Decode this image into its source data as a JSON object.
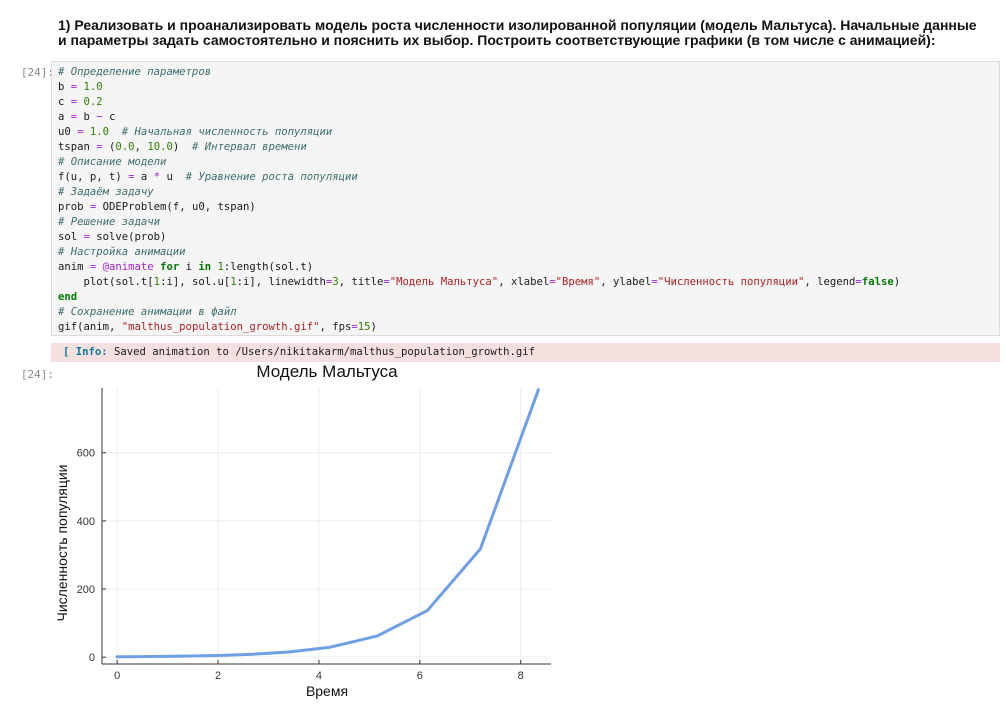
{
  "markdown": {
    "line1": "1) Реализовать и проанализировать модель роста численности изолированной популяции (модель Мальтуса). Начальные данные",
    "line2": "и параметры задать самостоятельно и пояснить их выбор. Построить соответствующие графики (в том числе с анимацией):"
  },
  "cell": {
    "in_prompt": "[24]:",
    "out_prompt": "[24]:",
    "code": {
      "l1_comment": "# Определение параметров",
      "l2_var": "b",
      "l2_eq": " = ",
      "l2_num": "1.0",
      "l3_var": "c",
      "l3_eq": " = ",
      "l3_num": "0.2",
      "l4_a": "a",
      "l4_eq": " = ",
      "l4_b": "b",
      "l4_minus": " − ",
      "l4_c": "c",
      "l5_var": "u0",
      "l5_eq": " = ",
      "l5_num": "1.0",
      "l5_comment": "  # Начальная численность популяции",
      "l6_var": "tspan",
      "l6_eq": " = ",
      "l6_open": "(",
      "l6_n1": "0.0",
      "l6_sep": ", ",
      "l6_n2": "10.0",
      "l6_close": ")",
      "l6_comment": "  # Интервал времени",
      "l7_comment": "# Описание модели",
      "l8_lhs": "f(u, p, t)",
      "l8_eq": " = ",
      "l8_a": "a",
      "l8_mul": " * ",
      "l8_u": "u",
      "l8_comment": "  # Уравнение роста популяции",
      "l9_comment": "# Задаём задачу",
      "l10_var": "prob",
      "l10_eq": " = ",
      "l10_rhs": "ODEProblem(f, u0, tspan)",
      "l11_comment": "# Решение задачи",
      "l12_var": "sol",
      "l12_eq": " = ",
      "l12_rhs": "solve(prob)",
      "l13_comment": "# Настройка анимации",
      "l14_var": "anim",
      "l14_eq": " = ",
      "l14_macro": "@animate",
      "l14_for": " for ",
      "l14_i": "i",
      "l14_in": " in ",
      "l14_one": "1",
      "l14_rest": ":length(sol.t)",
      "l15_a": "    plot(sol.t[",
      "l15_n1": "1",
      "l15_b": ":i], sol.u[",
      "l15_n2": "1",
      "l15_c": ":i], linewidth",
      "l15_eq1": "=",
      "l15_n3": "3",
      "l15_d": ", title",
      "l15_eq2": "=",
      "l15_s1": "\"Модель Мальтуса\"",
      "l15_e": ", xlabel",
      "l15_eq3": "=",
      "l15_s2": "\"Время\"",
      "l15_f": ", ylabel",
      "l15_eq4": "=",
      "l15_s3": "\"Численность популяции\"",
      "l15_g": ", legend",
      "l15_eq5": "=",
      "l15_false": "false",
      "l15_h": ")",
      "l16_end": "end",
      "l17_comment": "# Сохранение анимации в файл",
      "l18_a": "gif(anim, ",
      "l18_s": "\"malthus_population_growth.gif\"",
      "l18_b": ", fps",
      "l18_eq": "=",
      "l18_num": "15",
      "l18_c": ")"
    },
    "info": {
      "prefix": "[ ",
      "tag": "Info:",
      "message": " Saved animation to /Users/nikitakarm/malthus_population_growth.gif"
    }
  },
  "chart_data": {
    "type": "line",
    "title": "Модель Мальтуса",
    "xlabel": "Время",
    "ylabel": "Численность популяции",
    "xlim": [
      -0.3,
      8.6
    ],
    "ylim": [
      -20,
      790
    ],
    "x_ticks": [
      0,
      2,
      4,
      6,
      8
    ],
    "y_ticks": [
      0,
      200,
      400,
      600
    ],
    "grid": true,
    "legend": false,
    "line_color": "#6fa0e6",
    "series": [
      {
        "x": [
          0,
          1.0,
          2.0,
          2.7,
          3.4,
          4.2,
          5.15,
          6.15,
          7.2,
          8.35
        ],
        "y": [
          1.0,
          2.2,
          5.0,
          8.7,
          15.2,
          28.8,
          61.8,
          137.0,
          317.7,
          785.0
        ]
      }
    ]
  }
}
